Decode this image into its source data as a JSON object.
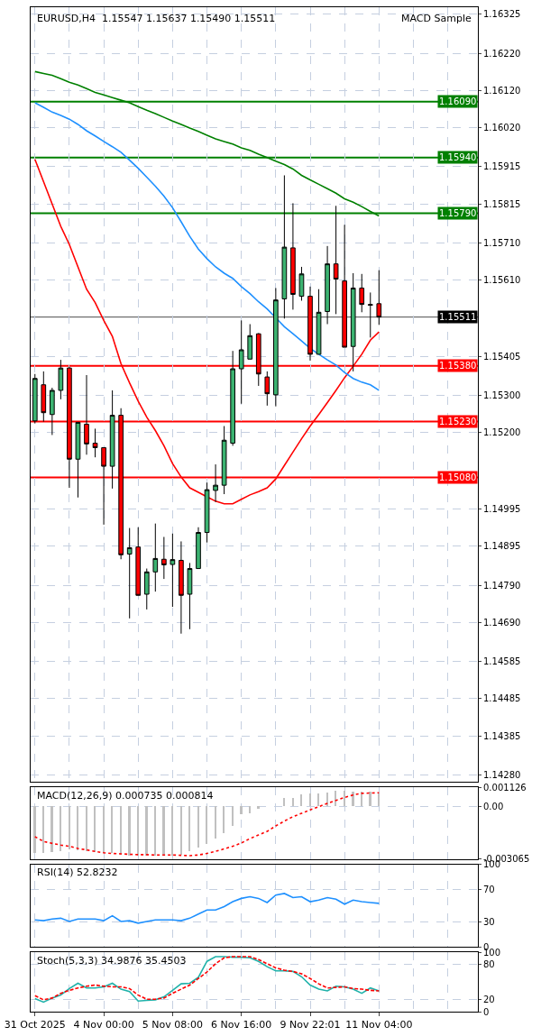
{
  "chart_data": [
    {
      "type": "candlestick",
      "title": "EURUSD,H4  1.15547 1.15637 1.15490 1.15511",
      "annotations": [
        "MACD Sample"
      ],
      "categories": [
        null,
        null,
        null,
        null,
        null,
        null,
        null,
        null,
        null,
        null,
        null,
        null,
        null,
        null,
        null,
        null,
        null,
        null,
        null,
        null,
        null,
        null,
        null,
        null,
        null,
        null,
        null,
        null,
        null,
        null,
        null,
        null,
        null,
        null,
        null,
        null,
        null,
        null,
        null,
        null,
        null
      ],
      "ohlc": [
        [
          1.15232,
          1.15358,
          1.15225,
          1.15346
        ],
        [
          1.15329,
          1.15365,
          1.1523,
          1.15254
        ],
        [
          1.15249,
          1.15321,
          1.15194,
          1.15314
        ],
        [
          1.15314,
          1.15396,
          1.1529,
          1.15374
        ],
        [
          1.15374,
          1.15377,
          1.15052,
          1.15129
        ],
        [
          1.15129,
          1.15228,
          1.15026,
          1.15228
        ],
        [
          1.15223,
          1.15355,
          1.15141,
          1.1517
        ],
        [
          1.15172,
          1.15211,
          1.15134,
          1.1516
        ],
        [
          1.1516,
          1.1516,
          1.14953,
          1.1511
        ],
        [
          1.1511,
          1.15314,
          1.1505,
          1.15247
        ],
        [
          1.15247,
          1.15266,
          1.1486,
          1.14872
        ],
        [
          1.14874,
          1.14944,
          1.14701,
          1.14891
        ],
        [
          1.14893,
          1.14946,
          1.14763,
          1.14763
        ],
        [
          1.14766,
          1.14835,
          1.14725,
          1.14826
        ],
        [
          1.14826,
          1.14956,
          1.14773,
          1.14862
        ],
        [
          1.1486,
          1.1492,
          1.14807,
          1.14845
        ],
        [
          1.14846,
          1.14929,
          1.14732,
          1.14859
        ],
        [
          1.14857,
          1.14908,
          1.1466,
          1.14763
        ],
        [
          1.14766,
          1.1485,
          1.14672,
          1.14835
        ],
        [
          1.14835,
          1.14946,
          1.14835,
          1.14932
        ],
        [
          1.14932,
          1.15066,
          1.14905,
          1.15047
        ],
        [
          1.15045,
          1.15115,
          1.15014,
          1.15059
        ],
        [
          1.15059,
          1.15218,
          1.15035,
          1.1518
        ],
        [
          1.15172,
          1.1542,
          1.15165,
          1.15372
        ],
        [
          1.15372,
          1.15502,
          1.15278,
          1.15423
        ],
        [
          1.15398,
          1.15492,
          1.15398,
          1.15461
        ],
        [
          1.15466,
          1.15468,
          1.15326,
          1.15358
        ],
        [
          1.1535,
          1.15365,
          1.15273,
          1.15305
        ],
        [
          1.15302,
          1.15589,
          1.15271,
          1.15557
        ],
        [
          1.1556,
          1.15892,
          1.15507,
          1.15699
        ],
        [
          1.15697,
          1.15817,
          1.15531,
          1.15572
        ],
        [
          1.15567,
          1.15646,
          1.15555,
          1.15627
        ],
        [
          1.15567,
          1.15593,
          1.15394,
          1.15411
        ],
        [
          1.15411,
          1.15586,
          1.15411,
          1.15524
        ],
        [
          1.15526,
          1.15702,
          1.15492,
          1.15654
        ],
        [
          1.15654,
          1.1581,
          1.15519,
          1.15613
        ],
        [
          1.15608,
          1.15759,
          1.1543,
          1.1543
        ],
        [
          1.15432,
          1.15629,
          1.15365,
          1.15589
        ],
        [
          1.15589,
          1.15627,
          1.15524,
          1.15545
        ],
        [
          1.15545,
          1.15577,
          1.15456,
          1.15543
        ],
        [
          1.15547,
          1.15637,
          1.1549,
          1.15511
        ]
      ],
      "colors": [
        "#3cb371",
        "#ff0000",
        "#3cb371",
        "#3cb371",
        "#ff0000",
        "#3cb371",
        "#ff0000",
        "#ff0000",
        "#ff0000",
        "#3cb371",
        "#ff0000",
        "#3cb371",
        "#ff0000",
        "#3cb371",
        "#3cb371",
        "#ff0000",
        "#3cb371",
        "#ff0000",
        "#3cb371",
        "#3cb371",
        "#3cb371",
        "#3cb371",
        "#3cb371",
        "#3cb371",
        "#3cb371",
        "#3cb371",
        "#ff0000",
        "#ff0000",
        "#3cb371",
        "#3cb371",
        "#ff0000",
        "#3cb371",
        "#ff0000",
        "#3cb371",
        "#3cb371",
        "#ff0000",
        "#ff0000",
        "#3cb371",
        "#ff0000",
        "#000000",
        "#ff0000"
      ],
      "series": [
        {
          "type": "line",
          "color": "#ff0000",
          "values": [
            1.15935,
            1.15875,
            1.15815,
            1.15755,
            1.15706,
            1.15646,
            1.15586,
            1.1555,
            1.15502,
            1.15459,
            1.15386,
            1.15334,
            1.15285,
            1.15242,
            1.15206,
            1.15165,
            1.15117,
            1.15081,
            1.15052,
            1.1504,
            1.15028,
            1.15016,
            1.15009,
            1.15009,
            1.15021,
            1.15033,
            1.15042,
            1.15052,
            1.15076,
            1.15112,
            1.15148,
            1.15184,
            1.15218,
            1.15249,
            1.15281,
            1.15314,
            1.15348,
            1.15379,
            1.15411,
            1.15449,
            1.15471
          ]
        },
        {
          "type": "line",
          "color": "#1e90ff",
          "values": [
            1.16087,
            1.16075,
            1.16062,
            1.16053,
            1.16043,
            1.16029,
            1.16012,
            1.15998,
            1.15983,
            1.15969,
            1.15954,
            1.15933,
            1.15911,
            1.15887,
            1.15863,
            1.15836,
            1.15805,
            1.15767,
            1.15728,
            1.15694,
            1.15668,
            1.15646,
            1.15629,
            1.15615,
            1.15593,
            1.15574,
            1.15552,
            1.15533,
            1.15509,
            1.15485,
            1.15466,
            1.15447,
            1.15427,
            1.15411,
            1.15396,
            1.15382,
            1.15362,
            1.15346,
            1.15336,
            1.15329,
            1.15314
          ]
        },
        {
          "type": "line",
          "color": "#008000",
          "values": [
            1.16171,
            1.16166,
            1.16161,
            1.16152,
            1.16142,
            1.16135,
            1.16125,
            1.16115,
            1.16108,
            1.16101,
            1.16094,
            1.16087,
            1.16077,
            1.16067,
            1.16058,
            1.16048,
            1.16038,
            1.16029,
            1.16019,
            1.1601,
            1.16,
            1.1599,
            1.15983,
            1.15976,
            1.15966,
            1.15959,
            1.15949,
            1.1594,
            1.1593,
            1.15921,
            1.15909,
            1.15892,
            1.1588,
            1.15868,
            1.15856,
            1.15844,
            1.15829,
            1.1582,
            1.15808,
            1.15795,
            1.15783
          ]
        }
      ],
      "ref_lines": [
        {
          "axis": "y",
          "value": 1.1609,
          "label": "1.16090",
          "color": "#008000"
        },
        {
          "axis": "y",
          "value": 1.1594,
          "label": "1.15940",
          "color": "#008000"
        },
        {
          "axis": "y",
          "value": 1.1579,
          "label": "1.15790",
          "color": "#008000"
        },
        {
          "axis": "y",
          "value": 1.15511,
          "label": "1.15511",
          "color": "#000000"
        },
        {
          "axis": "y",
          "value": 1.1538,
          "label": "1.15380",
          "color": "#ff0000"
        },
        {
          "axis": "y",
          "value": 1.1523,
          "label": "1.15230",
          "color": "#ff0000"
        },
        {
          "axis": "y",
          "value": 1.1508,
          "label": "1.15080",
          "color": "#ff0000"
        }
      ],
      "ylim": [
        1.14261,
        1.16344
      ],
      "yticks": [
        1.16325,
        {
          "value": 1.1622,
          "label": "1.16220"
        },
        {
          "value": 1.1612,
          "label": "1.16120"
        },
        {
          "value": 1.1602,
          "label": "1.16020"
        },
        1.15915,
        1.15815,
        {
          "value": 1.1571,
          "label": "1.15710"
        },
        {
          "value": 1.1561,
          "label": "1.15610"
        },
        1.15405,
        {
          "value": 1.153,
          "label": "1.15300"
        },
        {
          "value": 1.152,
          "label": "1.15200"
        },
        1.14995,
        1.14895,
        {
          "value": 1.1479,
          "label": "1.14790"
        },
        {
          "value": 1.1469,
          "label": "1.14690"
        },
        1.14585,
        1.14485,
        1.14385,
        {
          "value": 1.1428,
          "label": "1.14280"
        }
      ],
      "grid": true,
      "tick_labels": "y"
    },
    {
      "type": "bar",
      "title": "MACD(12,26,9) 0.000735 0.000814",
      "categories": [
        null,
        null,
        null,
        null,
        null,
        null,
        null,
        null,
        null,
        null,
        null,
        null,
        null,
        null,
        null,
        null,
        null,
        null,
        null,
        null,
        null,
        null,
        null,
        null,
        null,
        null,
        null,
        null,
        null,
        null,
        null,
        null,
        null,
        null,
        null,
        null,
        null,
        null,
        null,
        null,
        null
      ],
      "series": [
        {
          "type": "bar",
          "color": "#c0c0c0",
          "values": [
            -0.00271,
            -0.00271,
            -0.00267,
            -0.00261,
            -0.0025,
            -0.00256,
            -0.00261,
            -0.00267,
            -0.00271,
            -0.00271,
            -0.00282,
            -0.00286,
            -0.00286,
            -0.00286,
            -0.00286,
            -0.00286,
            -0.00286,
            -0.00282,
            -0.00261,
            -0.00239,
            -0.00218,
            -0.00186,
            -0.00154,
            -0.00112,
            -0.00048,
            -0.00041,
            -0.00016,
            0.0,
            0.0,
            0.00048,
            0.00048,
            0.00069,
            0.00076,
            0.00076,
            0.0008,
            0.0009,
            0.0009,
            0.00088,
            0.00088,
            0.00088,
            0.000735
          ]
        },
        {
          "type": "line",
          "color": "#ff0000",
          "line_style": "dotted",
          "values": [
            -0.00175,
            -0.00203,
            -0.00214,
            -0.00224,
            -0.00231,
            -0.00244,
            -0.00252,
            -0.00261,
            -0.00269,
            -0.00273,
            -0.00275,
            -0.00278,
            -0.0028,
            -0.0028,
            -0.00282,
            -0.00282,
            -0.00282,
            -0.00284,
            -0.00286,
            -0.00282,
            -0.00273,
            -0.00261,
            -0.00246,
            -0.00231,
            -0.00212,
            -0.00186,
            -0.00165,
            -0.00144,
            -0.00112,
            -0.00084,
            -0.00058,
            -0.00039,
            -0.00018,
            0.0,
            0.0002,
            0.00037,
            0.00054,
            0.00069,
            0.00078,
            0.0008,
            0.000814
          ]
        }
      ],
      "ylim": [
        -0.003065,
        0.001126
      ],
      "yticks": [
        0.001126,
        {
          "value": 0,
          "label": "0.00"
        },
        -0.003065
      ],
      "grid": true,
      "tick_labels": "y"
    },
    {
      "type": "line",
      "title": "RSI(14) 52.8232",
      "categories": [
        null,
        null,
        null,
        null,
        null,
        null,
        null,
        null,
        null,
        null,
        null,
        null,
        null,
        null,
        null,
        null,
        null,
        null,
        null,
        null,
        null,
        null,
        null,
        null,
        null,
        null,
        null,
        null,
        null,
        null,
        null,
        null,
        null,
        null,
        null,
        null,
        null,
        null,
        null,
        null,
        null
      ],
      "series": [
        {
          "color": "#1e90ff",
          "values": [
            33,
            32,
            34,
            35,
            31,
            34,
            34,
            34,
            32,
            38,
            31,
            32,
            29,
            31,
            33,
            33,
            33,
            32,
            35,
            40,
            45,
            45,
            49,
            55,
            59,
            61,
            59,
            54,
            63,
            65,
            60,
            61,
            55,
            57,
            60,
            58,
            52,
            57,
            55,
            54,
            53
          ]
        }
      ],
      "ylim": [
        0,
        100
      ],
      "yticks": [
        100,
        70,
        30,
        0
      ],
      "grid": true,
      "tick_labels": "y"
    },
    {
      "type": "line",
      "title": "Stoch(5,3,3) 34.9876 35.4503",
      "categories": [
        "31 Oct 2025",
        null,
        null,
        null,
        null,
        null,
        null,
        null,
        "4 Nov 00:00",
        null,
        null,
        null,
        null,
        null,
        null,
        null,
        "5 Nov 08:00",
        null,
        null,
        null,
        null,
        null,
        null,
        null,
        "6 Nov 16:00",
        null,
        null,
        null,
        null,
        null,
        null,
        null,
        "9 Nov 22:01",
        null,
        null,
        null,
        null,
        null,
        null,
        null,
        "11 Nov 04:00"
      ],
      "series": [
        {
          "color": "#20b2aa",
          "values": [
            22,
            16,
            23,
            28,
            39,
            48,
            40,
            40,
            42,
            48,
            38,
            34,
            18,
            19,
            20,
            25,
            36,
            47,
            48,
            58,
            85,
            93,
            93,
            92,
            92,
            91,
            85,
            76,
            69,
            69,
            68,
            59,
            45,
            38,
            35,
            43,
            42,
            38,
            31,
            40,
            35
          ]
        },
        {
          "color": "#ff0000",
          "line_style": "dashed",
          "values": [
            27,
            20,
            23,
            31,
            36,
            40,
            43,
            45,
            43,
            42,
            42,
            39,
            28,
            21,
            21,
            23,
            31,
            38,
            45,
            56,
            67,
            81,
            91,
            93,
            93,
            93,
            88,
            81,
            74,
            70,
            68,
            64,
            56,
            47,
            40,
            41,
            42,
            39,
            38,
            36,
            35
          ]
        }
      ],
      "ylim": [
        0,
        100
      ],
      "yticks": [
        100,
        80,
        20,
        0
      ],
      "grid": true
    }
  ]
}
